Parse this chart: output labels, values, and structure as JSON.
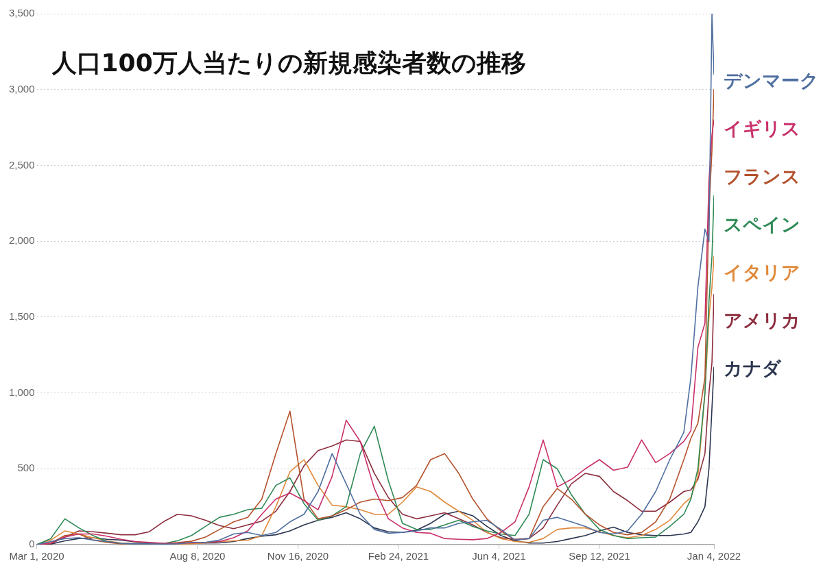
{
  "chart_data": {
    "type": "line",
    "title": "人口100万人当たりの新規感染者数の推移",
    "x": [
      "2020-03-01",
      "2020-03-15",
      "2020-03-29",
      "2020-04-12",
      "2020-04-26",
      "2020-05-10",
      "2020-05-24",
      "2020-06-07",
      "2020-06-21",
      "2020-07-05",
      "2020-07-19",
      "2020-08-02",
      "2020-08-16",
      "2020-08-30",
      "2020-09-13",
      "2020-09-27",
      "2020-10-11",
      "2020-10-25",
      "2020-11-08",
      "2020-11-22",
      "2020-12-06",
      "2020-12-20",
      "2021-01-03",
      "2021-01-17",
      "2021-01-31",
      "2021-02-14",
      "2021-02-28",
      "2021-03-14",
      "2021-03-28",
      "2021-04-11",
      "2021-04-25",
      "2021-05-09",
      "2021-05-23",
      "2021-06-06",
      "2021-06-20",
      "2021-07-04",
      "2021-07-18",
      "2021-08-01",
      "2021-08-15",
      "2021-08-29",
      "2021-09-12",
      "2021-09-26",
      "2021-10-10",
      "2021-10-24",
      "2021-11-07",
      "2021-11-21",
      "2021-12-05",
      "2021-12-12",
      "2021-12-19",
      "2021-12-26",
      "2021-12-30",
      "2022-01-02",
      "2022-01-04"
    ],
    "xlim": [
      "2020-03-01",
      "2022-01-04"
    ],
    "xticks": [
      {
        "value": "2020-03-01",
        "label": "Mar 1, 2020"
      },
      {
        "value": "2020-08-08",
        "label": "Aug 8, 2020"
      },
      {
        "value": "2020-11-16",
        "label": "Nov 16, 2020"
      },
      {
        "value": "2021-02-24",
        "label": "Feb 24, 2021"
      },
      {
        "value": "2021-06-04",
        "label": "Jun 4, 2021"
      },
      {
        "value": "2021-09-12",
        "label": "Sep 12, 2021"
      },
      {
        "value": "2022-01-04",
        "label": "Jan 4, 2022"
      }
    ],
    "ylim": [
      0,
      3500
    ],
    "yticks": [
      0,
      500,
      {
        "value": 1000,
        "label": "1,000"
      },
      {
        "value": 1500,
        "label": "1,500"
      },
      {
        "value": 2000,
        "label": "2,000"
      },
      {
        "value": 2500,
        "label": "2,500"
      },
      {
        "value": 3000,
        "label": "3,000"
      },
      {
        "value": 3500,
        "label": "3,500"
      }
    ],
    "grid": "y",
    "legend": "right",
    "marker": "none",
    "line_style": "solid",
    "series": [
      {
        "name": "デンマーク",
        "color": "#4f6fa0",
        "values": [
          0,
          20,
          40,
          45,
          30,
          20,
          8,
          5,
          5,
          3,
          5,
          15,
          15,
          30,
          70,
          80,
          60,
          80,
          150,
          200,
          350,
          600,
          400,
          200,
          100,
          75,
          80,
          90,
          110,
          110,
          140,
          150,
          160,
          100,
          30,
          40,
          160,
          180,
          150,
          120,
          80,
          70,
          90,
          200,
          350,
          560,
          740,
          1100,
          1700,
          2080,
          2000,
          3500,
          3100
        ]
      },
      {
        "name": "イギリス",
        "color": "#c9306a",
        "values": [
          0,
          10,
          50,
          70,
          70,
          55,
          35,
          20,
          15,
          9,
          9,
          12,
          15,
          20,
          45,
          90,
          200,
          300,
          340,
          290,
          230,
          450,
          820,
          680,
          370,
          170,
          110,
          80,
          75,
          40,
          35,
          32,
          40,
          80,
          150,
          380,
          690,
          380,
          430,
          500,
          560,
          490,
          510,
          690,
          540,
          600,
          680,
          750,
          1300,
          1460,
          2400,
          2700,
          2800
        ]
      },
      {
        "name": "フランス",
        "color": "#b4522c",
        "values": [
          0,
          10,
          60,
          70,
          30,
          15,
          5,
          8,
          7,
          8,
          13,
          22,
          50,
          100,
          150,
          180,
          300,
          600,
          880,
          300,
          170,
          190,
          230,
          280,
          300,
          290,
          310,
          390,
          560,
          600,
          470,
          300,
          170,
          90,
          30,
          40,
          250,
          370,
          300,
          200,
          130,
          80,
          65,
          80,
          150,
          300,
          560,
          700,
          800,
          1100,
          2200,
          2600,
          3000
        ]
      },
      {
        "name": "スペイン",
        "color": "#2f8a56",
        "values": [
          0,
          40,
          170,
          110,
          60,
          20,
          8,
          5,
          6,
          7,
          25,
          60,
          120,
          180,
          200,
          230,
          240,
          390,
          440,
          270,
          160,
          190,
          250,
          600,
          780,
          420,
          140,
          100,
          100,
          130,
          160,
          120,
          90,
          70,
          60,
          200,
          560,
          500,
          330,
          200,
          100,
          60,
          40,
          45,
          50,
          120,
          200,
          300,
          500,
          1000,
          1600,
          1900,
          2300
        ]
      },
      {
        "name": "イタリア",
        "color": "#e0893a",
        "values": [
          1,
          30,
          90,
          70,
          45,
          25,
          10,
          5,
          4,
          3,
          4,
          6,
          12,
          20,
          25,
          28,
          60,
          250,
          480,
          560,
          390,
          260,
          250,
          230,
          200,
          200,
          280,
          380,
          350,
          280,
          220,
          160,
          80,
          40,
          20,
          15,
          40,
          100,
          110,
          110,
          85,
          60,
          45,
          60,
          100,
          160,
          270,
          310,
          450,
          1000,
          1500,
          1700,
          1900
        ]
      },
      {
        "name": "アメリカ",
        "color": "#8c2d3d",
        "values": [
          0,
          5,
          50,
          90,
          85,
          75,
          65,
          65,
          85,
          150,
          200,
          190,
          160,
          125,
          105,
          130,
          155,
          220,
          350,
          520,
          620,
          650,
          690,
          680,
          470,
          310,
          200,
          170,
          190,
          210,
          170,
          130,
          80,
          45,
          35,
          40,
          110,
          260,
          400,
          470,
          450,
          350,
          290,
          220,
          220,
          280,
          350,
          360,
          430,
          600,
          1000,
          1200,
          1650
        ]
      },
      {
        "name": "カナダ",
        "color": "#2b3550",
        "values": [
          0,
          3,
          25,
          40,
          45,
          35,
          30,
          18,
          10,
          8,
          10,
          10,
          10,
          11,
          20,
          40,
          55,
          65,
          90,
          130,
          160,
          180,
          210,
          170,
          110,
          85,
          80,
          95,
          140,
          200,
          220,
          190,
          120,
          60,
          25,
          10,
          10,
          20,
          40,
          60,
          90,
          115,
          80,
          65,
          60,
          60,
          70,
          80,
          150,
          250,
          500,
          900,
          1170
        ]
      }
    ]
  }
}
